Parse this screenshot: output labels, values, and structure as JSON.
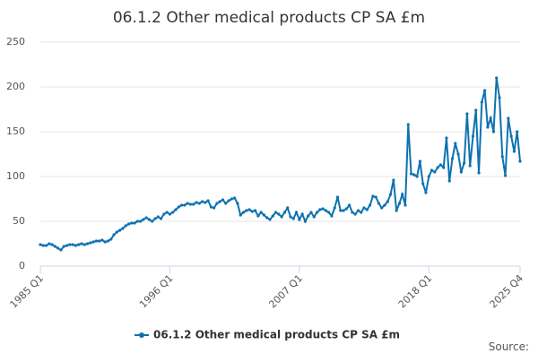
{
  "chart_data": {
    "type": "line",
    "title": "06.1.2 Other medical products CP SA £m",
    "categories": [
      "1985 Q1",
      null,
      null,
      null,
      null,
      null,
      null,
      null,
      null,
      null,
      null,
      null,
      null,
      null,
      null,
      null,
      null,
      null,
      null,
      null,
      null,
      null,
      null,
      null,
      null,
      null,
      null,
      null,
      null,
      null,
      null,
      null,
      null,
      null,
      null,
      null,
      null,
      null,
      null,
      null,
      null,
      null,
      null,
      null,
      "1996 Q1",
      null,
      null,
      null,
      null,
      null,
      null,
      null,
      null,
      null,
      null,
      null,
      null,
      null,
      null,
      null,
      null,
      null,
      null,
      null,
      null,
      null,
      null,
      null,
      null,
      null,
      null,
      null,
      null,
      null,
      null,
      null,
      null,
      null,
      null,
      null,
      null,
      null,
      null,
      null,
      null,
      null,
      null,
      null,
      "2007 Q1",
      null,
      null,
      null,
      null,
      null,
      null,
      null,
      null,
      null,
      null,
      null,
      null,
      null,
      null,
      null,
      null,
      null,
      null,
      null,
      null,
      null,
      null,
      null,
      null,
      null,
      null,
      null,
      null,
      null,
      null,
      null,
      null,
      null,
      null,
      null,
      null,
      null,
      null,
      null,
      null,
      null,
      null,
      null,
      "2018 Q1",
      null,
      null,
      null,
      null,
      null,
      null,
      null,
      null,
      null,
      null,
      null,
      null,
      null,
      null,
      null,
      null,
      null,
      null,
      null,
      null,
      null,
      null,
      null,
      null,
      null,
      null,
      null,
      null,
      null,
      null,
      "2025 Q4"
    ],
    "series": [
      {
        "name": "06.1.2 Other medical products CP SA £m",
        "color": "#0e72b0",
        "values": [
          24,
          23,
          23,
          25,
          24,
          22,
          20,
          18,
          22,
          23,
          24,
          24,
          23,
          24,
          25,
          24,
          25,
          26,
          27,
          28,
          28,
          29,
          27,
          28,
          30,
          35,
          38,
          40,
          42,
          45,
          47,
          48,
          48,
          50,
          50,
          52,
          54,
          52,
          50,
          53,
          55,
          53,
          58,
          60,
          58,
          60,
          63,
          66,
          68,
          68,
          70,
          69,
          69,
          71,
          70,
          72,
          71,
          73,
          66,
          65,
          70,
          72,
          74,
          70,
          73,
          75,
          76,
          70,
          57,
          60,
          62,
          63,
          61,
          62,
          56,
          60,
          57,
          54,
          52,
          56,
          60,
          58,
          55,
          60,
          65,
          55,
          53,
          60,
          52,
          58,
          50,
          56,
          60,
          55,
          60,
          63,
          64,
          62,
          60,
          56,
          65,
          77,
          62,
          62,
          64,
          68,
          60,
          58,
          62,
          60,
          65,
          63,
          68,
          78,
          77,
          70,
          65,
          68,
          72,
          80,
          96,
          62,
          70,
          80,
          68,
          158,
          103,
          102,
          100,
          117,
          92,
          82,
          100,
          107,
          105,
          110,
          113,
          110,
          143,
          95,
          120,
          137,
          125,
          105,
          115,
          170,
          112,
          145,
          174,
          104,
          183,
          196,
          155,
          165,
          150,
          210,
          188,
          122,
          101,
          165,
          145,
          128,
          150,
          117
        ]
      }
    ],
    "ylim": [
      0,
      250
    ],
    "yticks": [
      0,
      50,
      100,
      150,
      200,
      250
    ],
    "grid": true,
    "source": "Source:"
  }
}
